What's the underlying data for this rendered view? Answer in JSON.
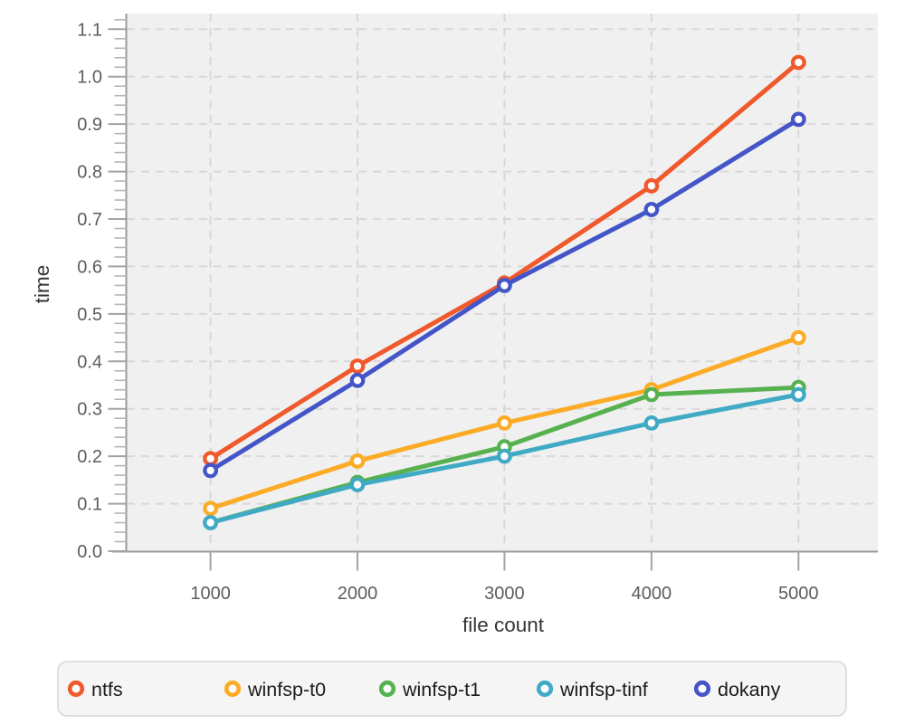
{
  "chart_data": {
    "type": "line",
    "title": "",
    "xlabel": "file count",
    "ylabel": "time",
    "x": [
      1000,
      2000,
      3000,
      4000,
      5000
    ],
    "xtick_labels": [
      "1000",
      "2000",
      "3000",
      "4000",
      "5000"
    ],
    "ytick_labels": [
      "0.0",
      "0.1",
      "0.2",
      "0.3",
      "0.4",
      "0.5",
      "0.6",
      "0.7",
      "0.8",
      "0.9",
      "1.0",
      "1.1"
    ],
    "xlim": [
      430,
      5540
    ],
    "ylim": [
      0,
      1.133
    ],
    "y_minor_step": 0.02,
    "grid": "dashed",
    "legend_position": "bottom",
    "series": [
      {
        "name": "ntfs",
        "color": "#f0592b",
        "values": [
          0.195,
          0.39,
          0.565,
          0.77,
          1.03
        ]
      },
      {
        "name": "winfsp-t0",
        "color": "#fbab25",
        "values": [
          0.09,
          0.19,
          0.27,
          0.34,
          0.45
        ]
      },
      {
        "name": "winfsp-t1",
        "color": "#56b14e",
        "values": [
          0.06,
          0.145,
          0.22,
          0.33,
          0.345
        ]
      },
      {
        "name": "winfsp-tinf",
        "color": "#40aac5",
        "values": [
          0.06,
          0.14,
          0.2,
          0.27,
          0.33
        ]
      },
      {
        "name": "dokany",
        "color": "#4355c7",
        "values": [
          0.17,
          0.36,
          0.56,
          0.72,
          0.91
        ]
      }
    ]
  },
  "style": {
    "plot_bg": "#f0f0f1",
    "grid_color": "#d8d8d8",
    "axis_line_color": "#9b9b9b",
    "major_tick_color": "#a3a3a3",
    "minor_tick_color": "#b5b5b5",
    "tick_label_color": "#5d5d5d",
    "axis_title_color": "#333333",
    "legend_bg": "#f5f5f5",
    "legend_border": "#d6d6d6",
    "legend_text_color": "#1b1b1b",
    "marker_fill": "#ffffff"
  }
}
